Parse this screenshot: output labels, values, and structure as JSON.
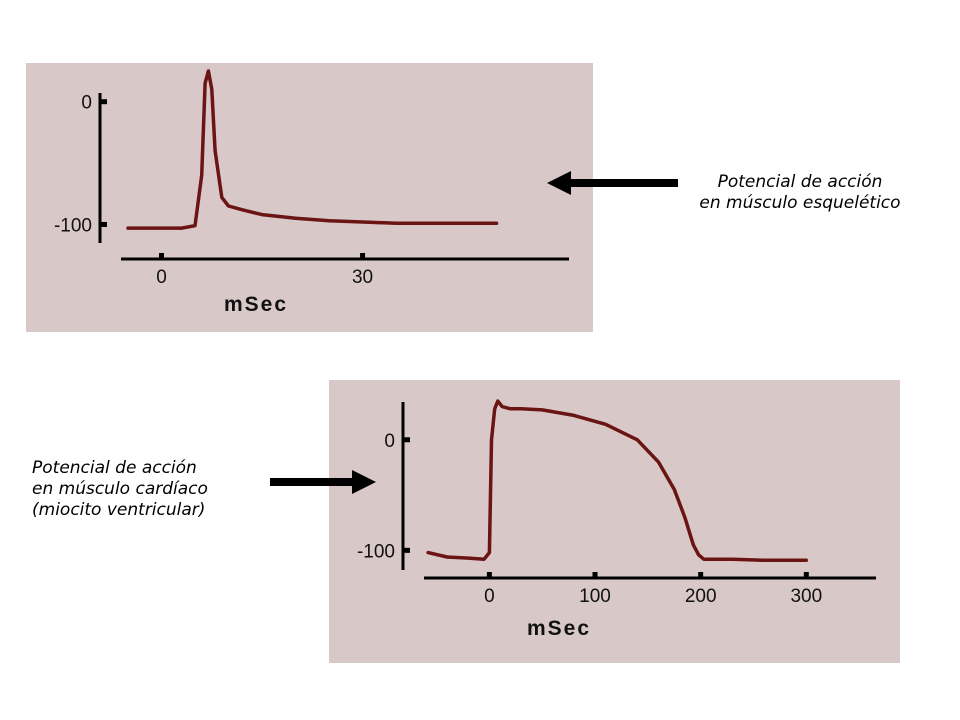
{
  "chart_data": [
    {
      "type": "line",
      "title": "",
      "xlabel": "mSec",
      "ylabel": "",
      "xlim": [
        -5,
        52
      ],
      "ylim": [
        -120,
        25
      ],
      "x_ticks": [
        0,
        30
      ],
      "y_ticks": [
        0,
        -100
      ],
      "x_tick_labels": [
        "0",
        "30"
      ],
      "y_tick_labels": [
        "0",
        "-100"
      ],
      "series": [
        {
          "color": "#6b1414",
          "x": [
            -5,
            0,
            3,
            5,
            6,
            6.5,
            7,
            7.5,
            8,
            9,
            10,
            12,
            15,
            20,
            25,
            30,
            35,
            40,
            45,
            50
          ],
          "y": [
            -103,
            -103,
            -103,
            -101,
            -60,
            15,
            25,
            10,
            -40,
            -78,
            -85,
            -88,
            -92,
            -95,
            -97,
            -98,
            -99,
            -99,
            -99,
            -99
          ]
        }
      ],
      "caption": [
        "Potencial de acción",
        "en músculo esquelético"
      ]
    },
    {
      "type": "line",
      "title": "",
      "xlabel": "mSec",
      "ylabel": "",
      "xlim": [
        -60,
        330
      ],
      "ylim": [
        -125,
        45
      ],
      "x_ticks": [
        0,
        100,
        200,
        300
      ],
      "y_ticks": [
        0,
        -100
      ],
      "x_tick_labels": [
        "0",
        "100",
        "200",
        "300"
      ],
      "y_tick_labels": [
        "0",
        "-100"
      ],
      "series": [
        {
          "color": "#6b1414",
          "x": [
            -58,
            -40,
            -20,
            -5,
            0,
            2,
            5,
            8,
            12,
            20,
            30,
            50,
            80,
            110,
            140,
            160,
            175,
            185,
            193,
            198,
            203,
            210,
            230,
            260,
            300
          ],
          "y": [
            -102,
            -106,
            -107,
            -108,
            -102,
            0,
            28,
            35,
            30,
            28,
            28,
            27,
            22,
            14,
            0,
            -20,
            -45,
            -70,
            -95,
            -104,
            -108,
            -108,
            -108,
            -109,
            -109
          ]
        }
      ],
      "caption": [
        "Potencial de acción",
        "en músculo cardíaco",
        "(miocito ventricular)"
      ]
    }
  ]
}
